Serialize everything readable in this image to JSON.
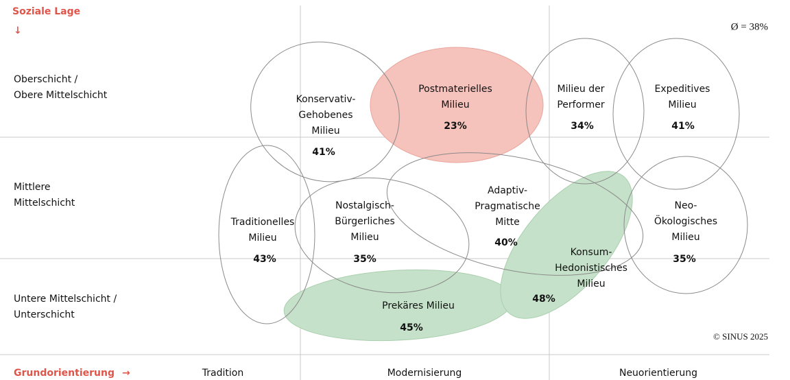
{
  "y_axis": {
    "title": "Soziale Lage",
    "arrow": "↓",
    "levels": [
      [
        "Oberschicht /",
        "Obere Mittelschicht"
      ],
      [
        "Mittlere",
        "Mittelschicht"
      ],
      [
        "Untere Mittelschicht /",
        "Unterschicht"
      ]
    ]
  },
  "x_axis": {
    "title": "Grundorientierung",
    "arrow": "→",
    "levels": [
      "Tradition",
      "Modernisierung",
      "Neuorientierung"
    ]
  },
  "average": "Ø = 38%",
  "copyright": "© SINUS 2025",
  "milieus": [
    {
      "label": [
        "Konservativ-",
        "Gehobenes",
        "Milieu"
      ],
      "value": "41%"
    },
    {
      "label": [
        "Postmaterielles",
        "Milieu"
      ],
      "value": "23%"
    },
    {
      "label": [
        "Milieu der",
        "Performer"
      ],
      "value": "34%"
    },
    {
      "label": [
        "Expeditives",
        "Milieu"
      ],
      "value": "41%"
    },
    {
      "label": [
        "Adaptiv-",
        "Pragmatische",
        "Mitte"
      ],
      "value": "40%"
    },
    {
      "label": [
        "Traditionelles",
        "Milieu"
      ],
      "value": "43%"
    },
    {
      "label": [
        "Nostalgisch-",
        "Bürgerliches",
        "Milieu"
      ],
      "value": "35%"
    },
    {
      "label": [
        "Neo-",
        "Ökologisches",
        "Milieu"
      ],
      "value": "35%"
    },
    {
      "label": [
        "Prekäres Milieu"
      ],
      "value": "45%"
    },
    {
      "label": [
        "Konsum-",
        "Hedonistisches",
        "Milieu"
      ],
      "value": "48%"
    }
  ]
}
